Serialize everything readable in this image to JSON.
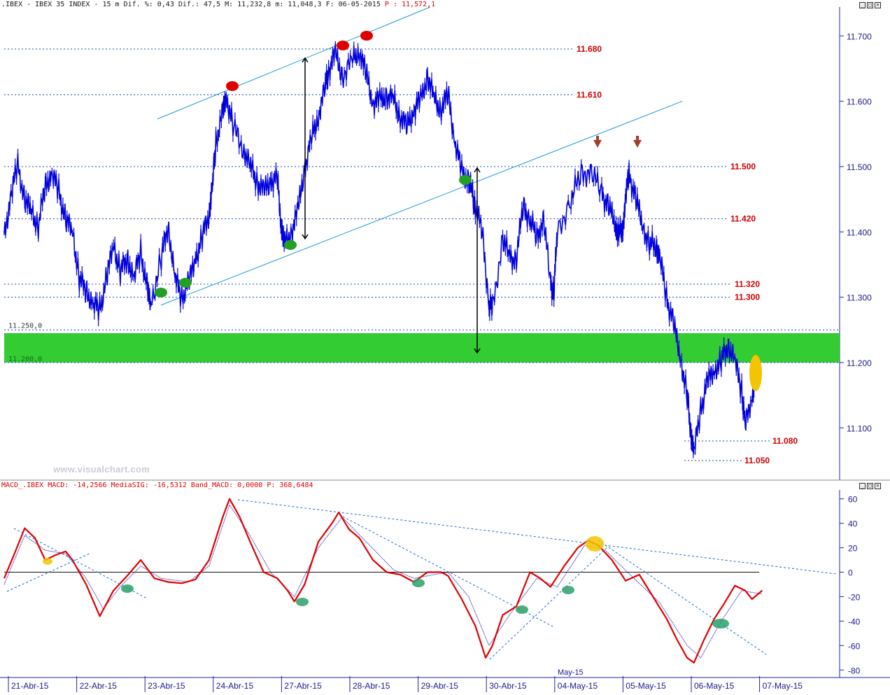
{
  "header": {
    "price_text": ".IBEX - IBEX 35 INDEX -  15 m Dif. %: 0,43 Dif.: 47,5 M: 11,232,8 m: 11,048,3 F: 06-05-2015",
    "price_last": "P : 11,572,1",
    "macd_text": "MACD_.IBEX MACD: -14,2566 MediaSIG: -16,5312 Band_MACD: 0,0000",
    "macd_last": "P: 368,6484"
  },
  "watermark": "www.visualchart.com",
  "colors": {
    "price": "#0000dd",
    "macd": "#e00000",
    "signal": "#0000aa",
    "support_band": "#33cc33",
    "level_label": "#cc0000",
    "trend_line": "#1a9ad6"
  },
  "chart_data": [
    {
      "type": "line",
      "title": "IBEX 35 INDEX 15m",
      "x": [
        "21-Abr-15",
        "22-Abr-15",
        "23-Abr-15",
        "24-Abr-15",
        "27-Abr-15",
        "28-Abr-15",
        "29-Abr-15",
        "30-Abr-15",
        "04-May-15",
        "05-May-15",
        "06-May-15",
        "07-May-15"
      ],
      "month_label": "May-15",
      "ylim": [
        11020,
        11740
      ],
      "yticks": [
        "11.700",
        "11.600",
        "11.500",
        "11.400",
        "11.300",
        "11.200",
        "11.100"
      ],
      "band": {
        "upper": 11250,
        "lower": 11200,
        "upper_label": "11.250,0",
        "lower_label": "11.200,0"
      },
      "levels": [
        {
          "value": 11680,
          "label": "11.680"
        },
        {
          "value": 11610,
          "label": "11.610"
        },
        {
          "value": 11500,
          "label": "11.500"
        },
        {
          "value": 11420,
          "label": "11.420"
        },
        {
          "value": 11320,
          "label": "11.320"
        },
        {
          "value": 11300,
          "label": "11.300"
        },
        {
          "value": 11080,
          "label": "11.080"
        },
        {
          "value": 11050,
          "label": "11.050"
        }
      ],
      "series": [
        {
          "values": [
            [
              0.0,
              11390
            ],
            [
              0.1,
              11460
            ],
            [
              0.2,
              11500
            ],
            [
              0.3,
              11450
            ],
            [
              0.4,
              11430
            ],
            [
              0.5,
              11410
            ],
            [
              0.6,
              11470
            ],
            [
              0.7,
              11490
            ],
            [
              0.8,
              11460
            ],
            [
              0.9,
              11420
            ],
            [
              1.0,
              11400
            ],
            [
              1.1,
              11330
            ],
            [
              1.2,
              11310
            ],
            [
              1.3,
              11290
            ],
            [
              1.4,
              11280
            ],
            [
              1.5,
              11330
            ],
            [
              1.6,
              11380
            ],
            [
              1.7,
              11340
            ],
            [
              1.8,
              11360
            ],
            [
              1.9,
              11330
            ],
            [
              2.0,
              11370
            ],
            [
              2.1,
              11310
            ],
            [
              2.15,
              11290
            ],
            [
              2.3,
              11360
            ],
            [
              2.4,
              11410
            ],
            [
              2.5,
              11330
            ],
            [
              2.6,
              11300
            ],
            [
              2.7,
              11320
            ],
            [
              2.8,
              11360
            ],
            [
              2.9,
              11390
            ],
            [
              3.0,
              11430
            ],
            [
              3.05,
              11470
            ],
            [
              3.1,
              11540
            ],
            [
              3.2,
              11580
            ],
            [
              3.25,
              11610
            ],
            [
              3.35,
              11560
            ],
            [
              3.5,
              11530
            ],
            [
              3.6,
              11500
            ],
            [
              3.7,
              11480
            ],
            [
              3.8,
              11460
            ],
            [
              3.9,
              11480
            ],
            [
              4.0,
              11480
            ],
            [
              4.05,
              11420
            ],
            [
              4.1,
              11380
            ],
            [
              4.2,
              11400
            ],
            [
              4.3,
              11430
            ],
            [
              4.4,
              11500
            ],
            [
              4.5,
              11540
            ],
            [
              4.6,
              11580
            ],
            [
              4.7,
              11620
            ],
            [
              4.75,
              11650
            ],
            [
              4.85,
              11670
            ],
            [
              4.95,
              11640
            ],
            [
              5.1,
              11660
            ],
            [
              5.2,
              11680
            ],
            [
              5.3,
              11640
            ],
            [
              5.4,
              11600
            ],
            [
              5.5,
              11600
            ],
            [
              5.6,
              11610
            ],
            [
              5.7,
              11600
            ],
            [
              5.8,
              11580
            ],
            [
              5.9,
              11560
            ],
            [
              6.0,
              11590
            ],
            [
              6.1,
              11600
            ],
            [
              6.2,
              11640
            ],
            [
              6.3,
              11600
            ],
            [
              6.4,
              11590
            ],
            [
              6.5,
              11610
            ],
            [
              6.6,
              11540
            ],
            [
              6.7,
              11490
            ],
            [
              6.8,
              11480
            ],
            [
              6.85,
              11460
            ],
            [
              6.9,
              11440
            ],
            [
              7.0,
              11400
            ],
            [
              7.1,
              11290
            ],
            [
              7.15,
              11280
            ],
            [
              7.3,
              11390
            ],
            [
              7.4,
              11360
            ],
            [
              7.5,
              11360
            ],
            [
              7.6,
              11440
            ],
            [
              7.7,
              11420
            ],
            [
              7.8,
              11390
            ],
            [
              7.9,
              11420
            ],
            [
              8.0,
              11320
            ],
            [
              8.05,
              11310
            ],
            [
              8.1,
              11400
            ],
            [
              8.3,
              11450
            ],
            [
              8.45,
              11490
            ],
            [
              8.6,
              11490
            ],
            [
              8.75,
              11460
            ],
            [
              8.85,
              11440
            ],
            [
              8.95,
              11410
            ],
            [
              9.0,
              11400
            ],
            [
              9.05,
              11400
            ],
            [
              9.1,
              11450
            ],
            [
              9.15,
              11490
            ],
            [
              9.25,
              11450
            ],
            [
              9.35,
              11410
            ],
            [
              9.45,
              11380
            ],
            [
              9.55,
              11380
            ],
            [
              9.6,
              11360
            ],
            [
              9.7,
              11300
            ],
            [
              9.8,
              11260
            ],
            [
              9.9,
              11210
            ],
            [
              10.0,
              11150
            ],
            [
              10.05,
              11100
            ],
            [
              10.1,
              11060
            ],
            [
              10.2,
              11130
            ],
            [
              10.3,
              11170
            ],
            [
              10.4,
              11190
            ],
            [
              10.5,
              11200
            ],
            [
              10.6,
              11230
            ],
            [
              10.7,
              11200
            ],
            [
              10.8,
              11160
            ],
            [
              10.85,
              11100
            ],
            [
              10.95,
              11150
            ],
            [
              11.0,
              11170
            ]
          ]
        }
      ]
    },
    {
      "type": "line",
      "title": "MACD",
      "ylim": [
        -85,
        65
      ],
      "yticks": [
        "60",
        "40",
        "20",
        "0",
        "-20",
        "-40",
        "-60",
        "-80"
      ],
      "series": [
        {
          "values": [
            [
              0.0,
              -5
            ],
            [
              0.15,
              15
            ],
            [
              0.3,
              36
            ],
            [
              0.45,
              28
            ],
            [
              0.6,
              10
            ],
            [
              0.75,
              14
            ],
            [
              0.9,
              17
            ],
            [
              1.0,
              10
            ],
            [
              1.2,
              -10
            ],
            [
              1.4,
              -36
            ],
            [
              1.6,
              -15
            ],
            [
              1.8,
              -3
            ],
            [
              2.0,
              10
            ],
            [
              2.2,
              -5
            ],
            [
              2.4,
              -8
            ],
            [
              2.6,
              -9
            ],
            [
              2.8,
              -6
            ],
            [
              3.0,
              10
            ],
            [
              3.2,
              45
            ],
            [
              3.3,
              60
            ],
            [
              3.45,
              45
            ],
            [
              3.6,
              25
            ],
            [
              3.8,
              0
            ],
            [
              4.0,
              -5
            ],
            [
              4.15,
              -15
            ],
            [
              4.25,
              -24
            ],
            [
              4.4,
              -10
            ],
            [
              4.6,
              25
            ],
            [
              4.8,
              40
            ],
            [
              4.9,
              49
            ],
            [
              5.05,
              35
            ],
            [
              5.2,
              28
            ],
            [
              5.4,
              10
            ],
            [
              5.6,
              0
            ],
            [
              5.8,
              -2
            ],
            [
              6.0,
              -8
            ],
            [
              6.2,
              0
            ],
            [
              6.4,
              0
            ],
            [
              6.5,
              -3
            ],
            [
              6.7,
              -22
            ],
            [
              6.9,
              -44
            ],
            [
              7.05,
              -70
            ],
            [
              7.15,
              -60
            ],
            [
              7.3,
              -35
            ],
            [
              7.5,
              -28
            ],
            [
              7.7,
              0
            ],
            [
              7.85,
              -5
            ],
            [
              8.0,
              -12
            ],
            [
              8.2,
              5
            ],
            [
              8.4,
              20
            ],
            [
              8.55,
              26
            ],
            [
              8.7,
              22
            ],
            [
              8.9,
              10
            ],
            [
              9.1,
              -7
            ],
            [
              9.3,
              -2
            ],
            [
              9.5,
              -20
            ],
            [
              9.7,
              -38
            ],
            [
              9.85,
              -55
            ],
            [
              10.0,
              -70
            ],
            [
              10.1,
              -74
            ],
            [
              10.25,
              -55
            ],
            [
              10.4,
              -38
            ],
            [
              10.55,
              -25
            ],
            [
              10.7,
              -11
            ],
            [
              10.85,
              -15
            ],
            [
              10.95,
              -22
            ],
            [
              11.1,
              -15
            ]
          ]
        },
        {
          "values": [
            [
              0.0,
              -10
            ],
            [
              0.3,
              30
            ],
            [
              0.6,
              18
            ],
            [
              0.9,
              15
            ],
            [
              1.2,
              -5
            ],
            [
              1.45,
              -30
            ],
            [
              1.7,
              -12
            ],
            [
              2.0,
              5
            ],
            [
              2.3,
              -5
            ],
            [
              2.7,
              -8
            ],
            [
              3.0,
              5
            ],
            [
              3.3,
              55
            ],
            [
              3.6,
              30
            ],
            [
              3.9,
              0
            ],
            [
              4.25,
              -20
            ],
            [
              4.6,
              20
            ],
            [
              4.95,
              45
            ],
            [
              5.3,
              25
            ],
            [
              5.7,
              2
            ],
            [
              6.0,
              -5
            ],
            [
              6.5,
              0
            ],
            [
              6.8,
              -20
            ],
            [
              7.1,
              -60
            ],
            [
              7.4,
              -35
            ],
            [
              7.8,
              -5
            ],
            [
              8.1,
              -12
            ],
            [
              8.5,
              22
            ],
            [
              8.8,
              18
            ],
            [
              9.2,
              -4
            ],
            [
              9.6,
              -25
            ],
            [
              10.0,
              -60
            ],
            [
              10.2,
              -70
            ],
            [
              10.5,
              -40
            ],
            [
              10.8,
              -15
            ],
            [
              11.1,
              -18
            ]
          ]
        }
      ]
    }
  ]
}
